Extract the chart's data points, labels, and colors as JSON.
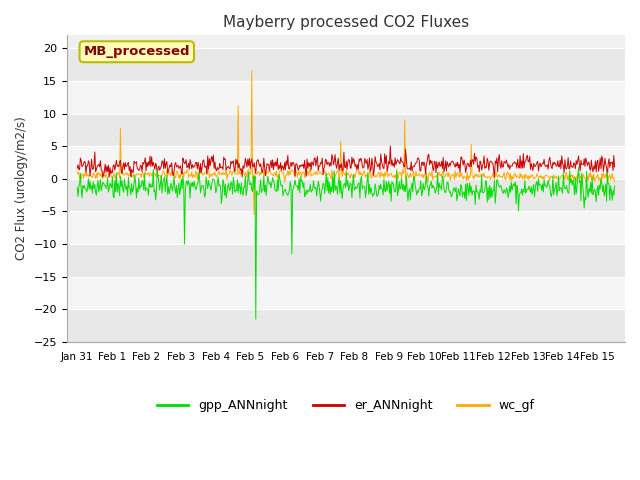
{
  "title": "Mayberry processed CO2 Fluxes",
  "ylabel": "CO2 Flux (urology/m2/s)",
  "ylim": [
    -25,
    22
  ],
  "yticks": [
    -25,
    -20,
    -15,
    -10,
    -5,
    0,
    5,
    10,
    15,
    20
  ],
  "fig_bg_color": "#ffffff",
  "plot_bg_color": "#f0f0f0",
  "grid_color": "#ffffff",
  "legend_entries": [
    "gpp_ANNnight",
    "er_ANNnight",
    "wc_gf"
  ],
  "legend_colors": [
    "#00dd00",
    "#cc0000",
    "#ffaa00"
  ],
  "annotation_text": "MB_processed",
  "annotation_color": "#880000",
  "annotation_bg": "#ffffbb",
  "annotation_border": "#bbbb00",
  "num_points": 672,
  "xtick_labels": [
    "Jan 31",
    "Feb 1",
    "Feb 2",
    "Feb 3",
    "Feb 4",
    "Feb 5",
    "Feb 6",
    "Feb 7",
    "Feb 8",
    "Feb 9",
    "Feb 10",
    "Feb 11",
    "Feb 12",
    "Feb 13",
    "Feb 14",
    "Feb 15"
  ],
  "gpp_color": "#00dd00",
  "er_color": "#cc0000",
  "wc_color": "#ffaa00",
  "line_width": 0.7
}
